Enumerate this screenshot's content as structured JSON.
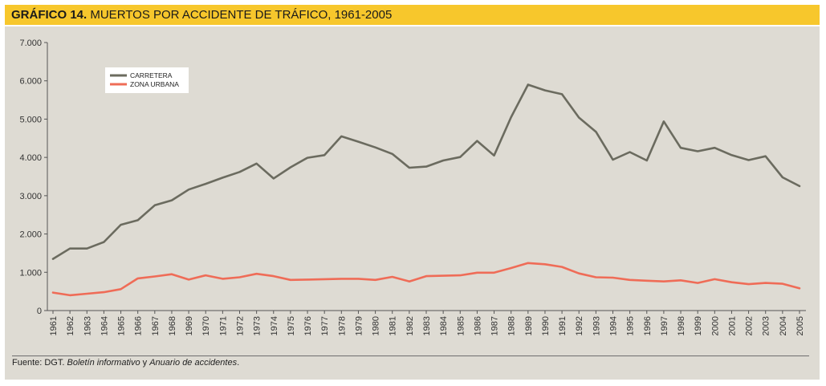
{
  "header": {
    "label": "GRÁFICO 14.",
    "title": "MUERTOS POR ACCIDENTE DE TRÁFICO, 1961-2005"
  },
  "footer": {
    "prefix": "Fuente: DGT. ",
    "pub1": "Boletín informativo",
    "connector": " y ",
    "pub2": "Anuario de accidentes",
    "suffix": "."
  },
  "colors": {
    "background": "#dedbd3",
    "carretera": "#6b6b5f",
    "zona_urbana": "#ef6c57",
    "title_bar": "#f7c72c"
  },
  "chart_data": {
    "type": "line",
    "title": "MUERTOS POR ACCIDENTE DE TRÁFICO, 1961-2005",
    "xlabel": "",
    "ylabel": "",
    "ylim": [
      0,
      7000
    ],
    "yticks": [
      0,
      1000,
      2000,
      3000,
      4000,
      5000,
      6000,
      7000
    ],
    "ytick_labels": [
      "0",
      "1.000",
      "2.000",
      "3.000",
      "4.000",
      "5.000",
      "6.000",
      "7.000"
    ],
    "grid": false,
    "legend_position": "top-left",
    "x": [
      "1961",
      "1962",
      "1963",
      "1964",
      "1965",
      "1966",
      "1967",
      "1968",
      "1969",
      "1970",
      "1971",
      "1972",
      "1973",
      "1974",
      "1975",
      "1976",
      "1977",
      "1978",
      "1979",
      "1980",
      "1981",
      "1982",
      "1983",
      "1984",
      "1985",
      "1986",
      "1987",
      "1988",
      "1989",
      "1990",
      "1991",
      "1992",
      "1993",
      "1994",
      "1995",
      "1996",
      "1997",
      "1998",
      "1999",
      "2000",
      "2001",
      "2002",
      "2003",
      "2004",
      "2005"
    ],
    "series": [
      {
        "name": "CARRETERA",
        "values": [
          1350,
          1620,
          1620,
          1790,
          2240,
          2360,
          2750,
          2880,
          3160,
          3310,
          3470,
          3620,
          3840,
          3450,
          3740,
          3990,
          4060,
          4550,
          4410,
          4260,
          4090,
          3730,
          3760,
          3920,
          4010,
          4430,
          4050,
          5050,
          5900,
          5750,
          5650,
          5040,
          4670,
          3940,
          4140,
          3920,
          4940,
          4250,
          4160,
          4250,
          4060,
          3930,
          4030,
          3480,
          3250
        ]
      },
      {
        "name": "ZONA URBANA",
        "values": [
          470,
          400,
          440,
          480,
          560,
          840,
          890,
          950,
          810,
          920,
          830,
          870,
          960,
          900,
          800,
          810,
          820,
          830,
          830,
          800,
          880,
          760,
          900,
          910,
          920,
          990,
          990,
          1110,
          1240,
          1210,
          1140,
          970,
          870,
          860,
          800,
          780,
          760,
          790,
          720,
          820,
          740,
          690,
          720,
          700,
          580
        ]
      }
    ]
  }
}
